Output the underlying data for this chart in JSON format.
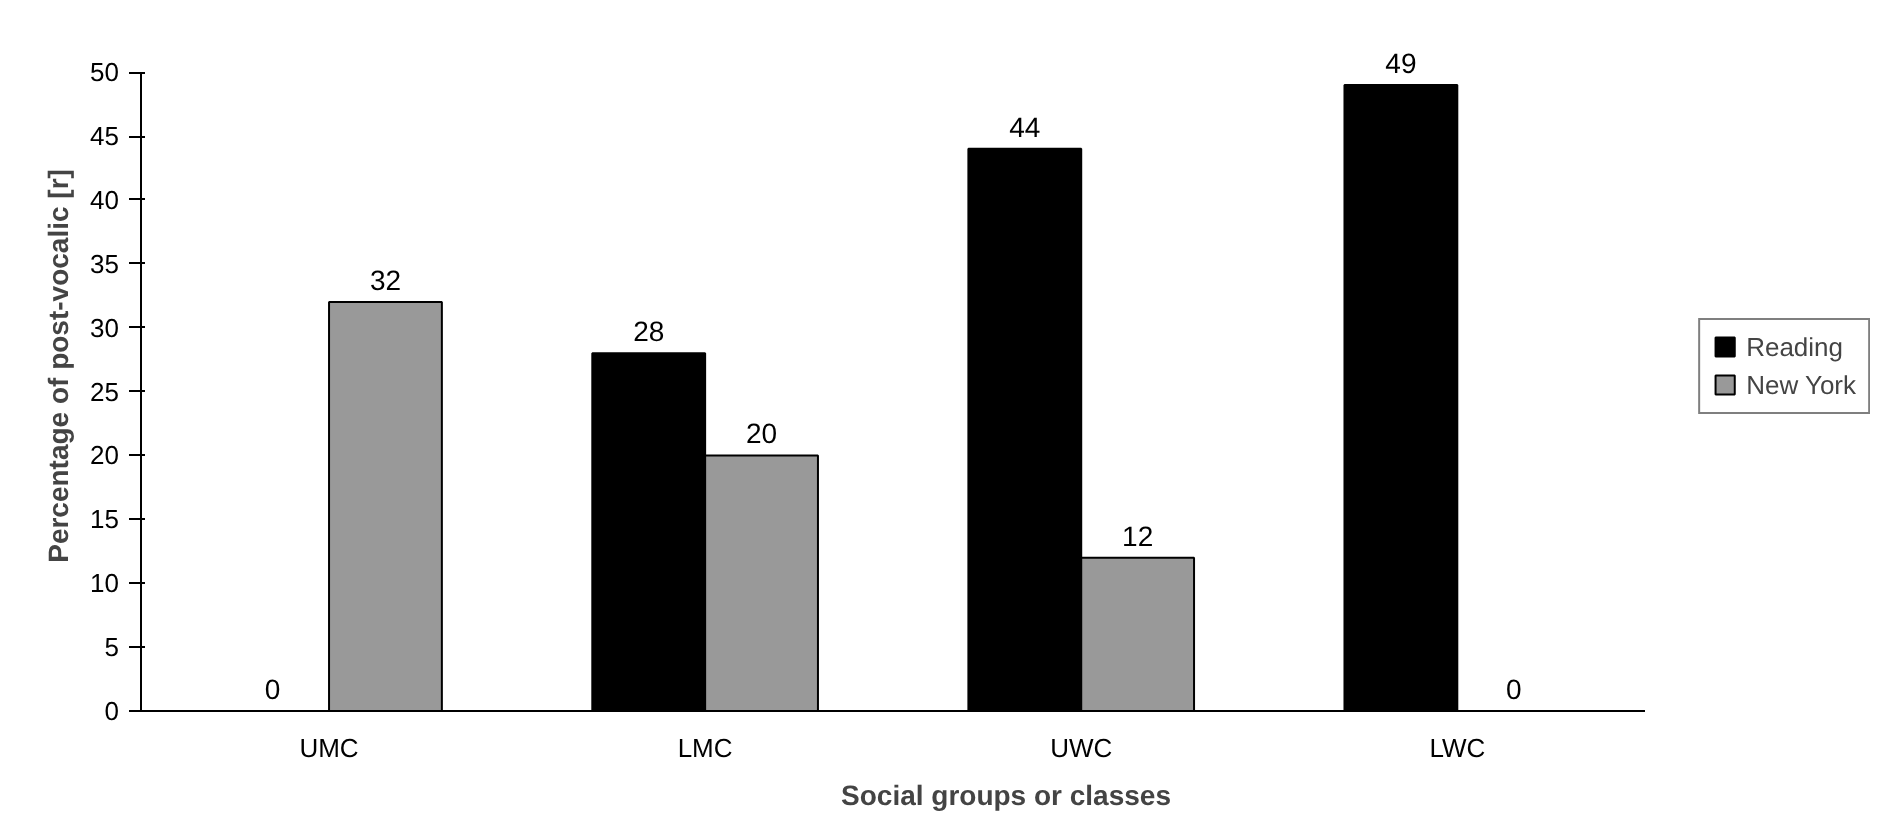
{
  "chart_data": {
    "type": "bar",
    "xlabel": "Social groups or classes",
    "ylabel": "Percentage of post-vocalic [r]",
    "categories": [
      "UMC",
      "LMC",
      "UWC",
      "LWC"
    ],
    "series": [
      {
        "name": "Reading",
        "color": "#000000",
        "values": [
          0,
          28,
          44,
          49
        ]
      },
      {
        "name": "New York",
        "color": "#999999",
        "values": [
          32,
          20,
          12,
          0
        ]
      }
    ],
    "ylim": [
      0,
      50
    ],
    "yticks": [
      0,
      5,
      10,
      15,
      20,
      25,
      30,
      35,
      40,
      45,
      50
    ],
    "data_labels": true,
    "legend": "right",
    "grid": false
  }
}
